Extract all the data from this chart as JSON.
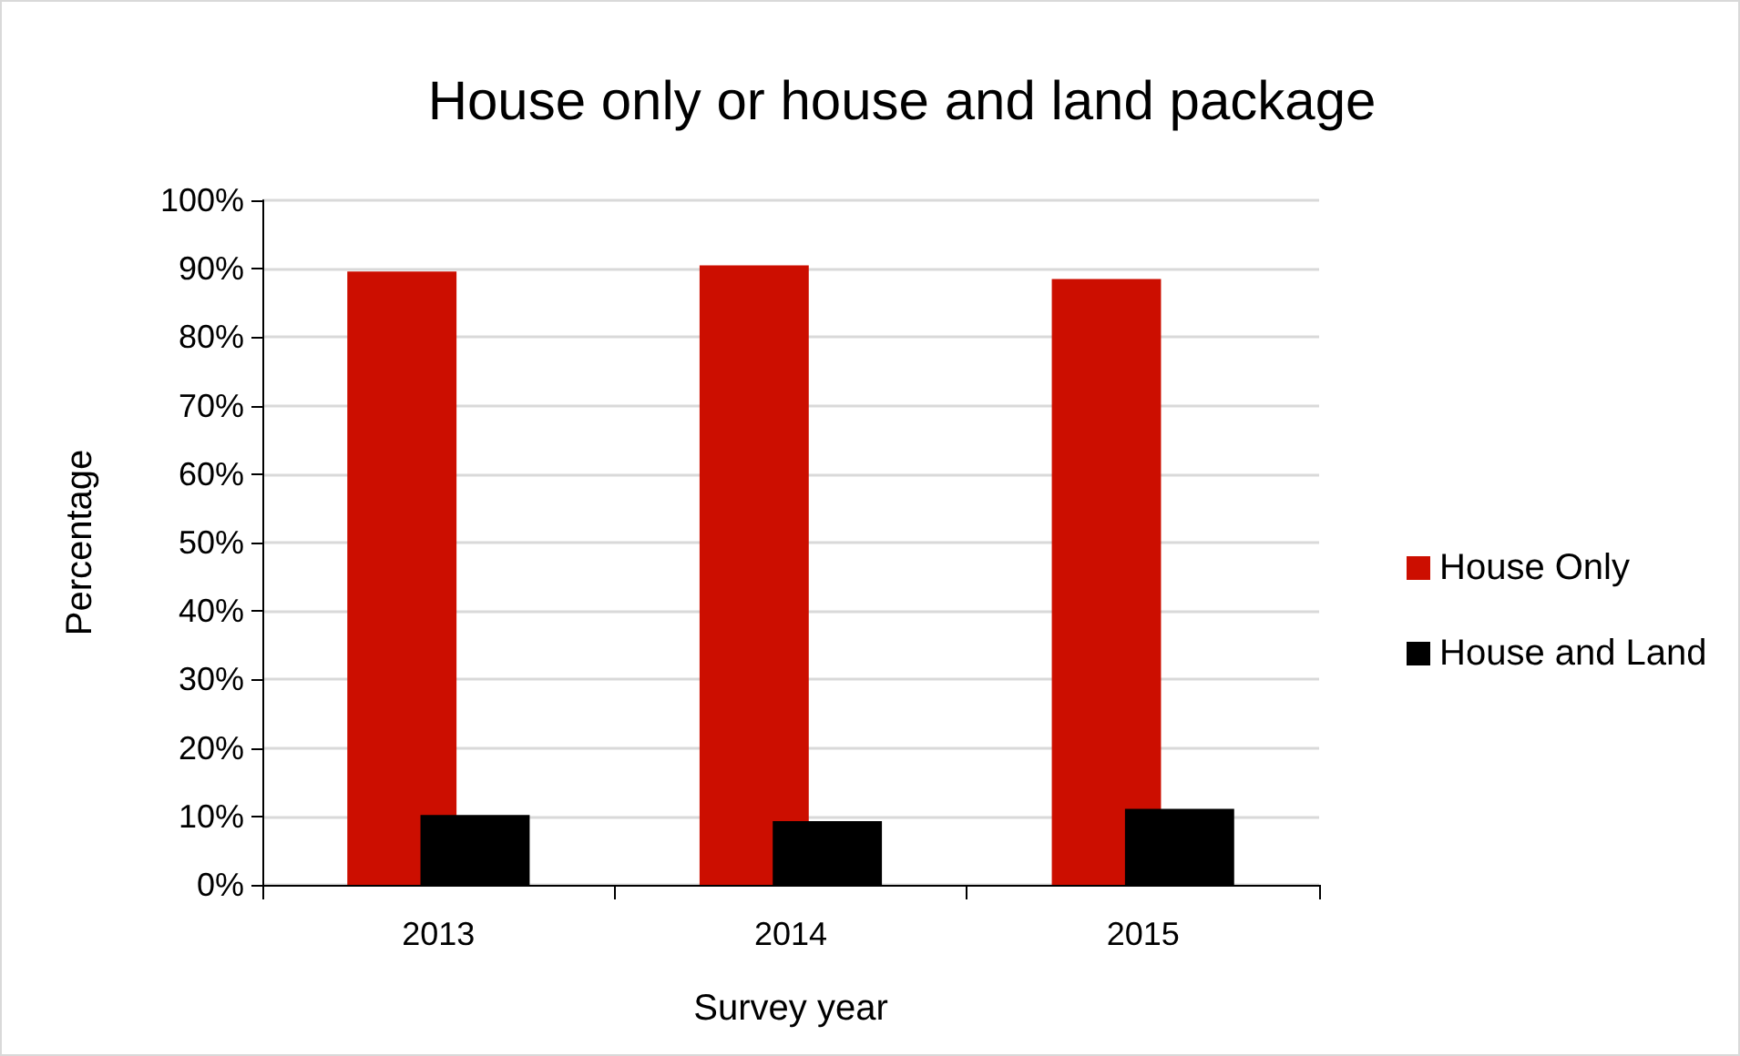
{
  "chart_data": {
    "type": "bar",
    "title": "House only or house and land package",
    "xlabel": "Survey year",
    "ylabel": "Percentage",
    "categories": [
      "2013",
      "2014",
      "2015"
    ],
    "series": [
      {
        "name": "House Only",
        "color": "#cc0e00",
        "values": [
          89.6,
          90.5,
          88.5
        ]
      },
      {
        "name": "House and Land",
        "color": "#000000",
        "values": [
          10.2,
          9.3,
          11.1
        ]
      }
    ],
    "ylim": [
      0,
      100
    ],
    "yticks": [
      {
        "value": 0,
        "label": "0%"
      },
      {
        "value": 10,
        "label": "10%"
      },
      {
        "value": 20,
        "label": "20%"
      },
      {
        "value": 30,
        "label": "30%"
      },
      {
        "value": 40,
        "label": "40%"
      },
      {
        "value": 50,
        "label": "50%"
      },
      {
        "value": 60,
        "label": "60%"
      },
      {
        "value": 70,
        "label": "70%"
      },
      {
        "value": 80,
        "label": "80%"
      },
      {
        "value": 90,
        "label": "90%"
      },
      {
        "value": 100,
        "label": "100%"
      }
    ],
    "grid": "y",
    "legend": "right"
  }
}
